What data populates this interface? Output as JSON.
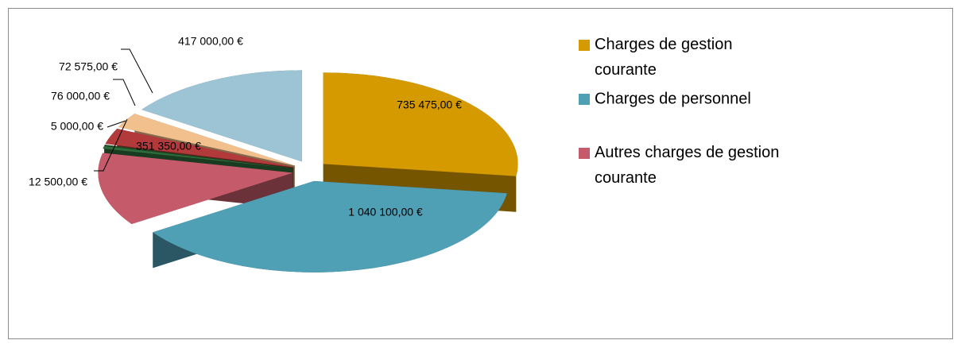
{
  "chart_data": {
    "type": "pie",
    "categories": [
      "Charges de gestion courante",
      "Charges de personnel",
      "Autres charges de gestion courante",
      null,
      null,
      null,
      null,
      null
    ],
    "values": [
      735475,
      1040100,
      351350,
      12500,
      5000,
      76000,
      72575,
      417000
    ],
    "value_labels": [
      "735 475,00 €",
      "1 040 100,00 €",
      "351 350,00 €",
      "12 500,00 €",
      "5 000,00 €",
      "76 000,00 €",
      "72 575,00 €",
      "417 000,00 €"
    ],
    "colors": [
      "#d49a00",
      "#4f9fb5",
      "#c55a6a",
      "#2e6b3a",
      "#1f4a22",
      "#b23a3a",
      "#f1c08c",
      "#9cc4d4"
    ],
    "legend": "right"
  }
}
